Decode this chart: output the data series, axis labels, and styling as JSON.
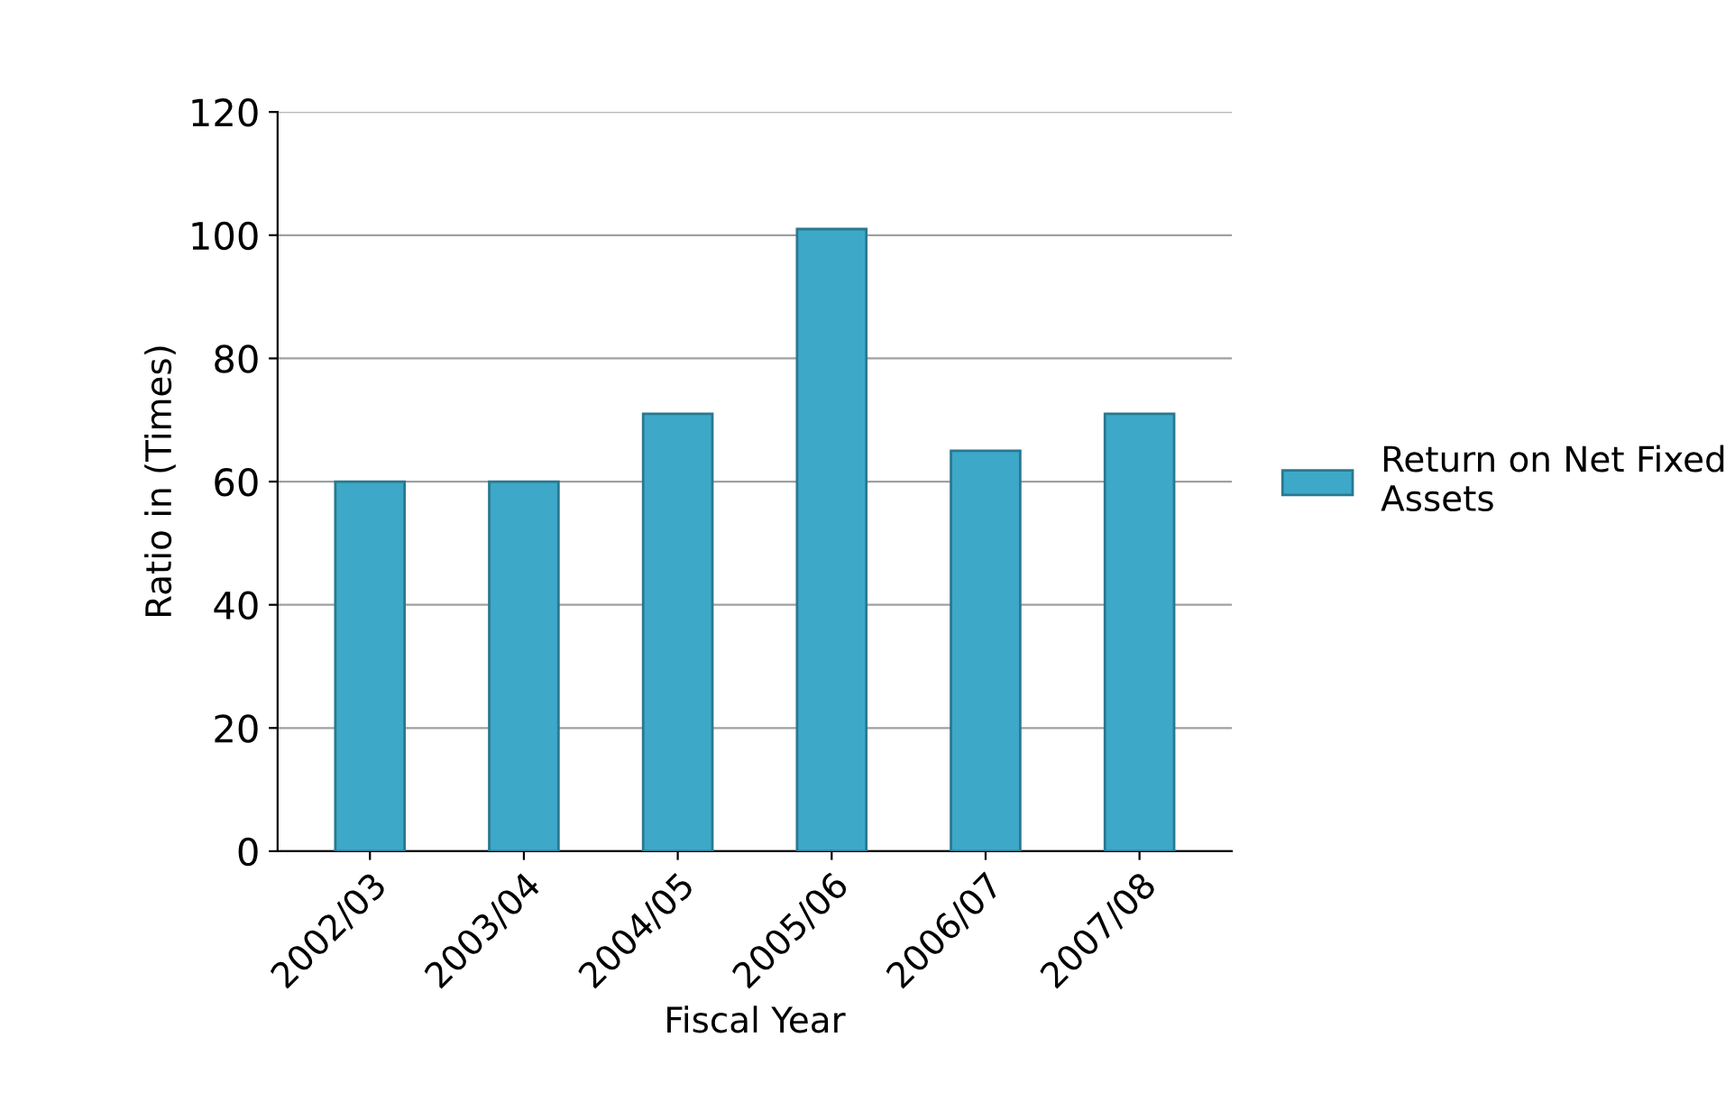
{
  "chart_data": {
    "type": "bar",
    "xlabel": "Fiscal Year",
    "ylabel": "Ratio in (Times)",
    "categories": [
      "2002/03",
      "2003/04",
      "2004/05",
      "2005/06",
      "2006/07",
      "2007/08"
    ],
    "series": [
      {
        "name": "Return on Net Fixed Assets",
        "color": "#3ea8c8",
        "values": [
          60,
          60,
          71,
          101,
          65,
          71
        ]
      }
    ],
    "ylim": [
      0,
      120
    ],
    "yticks": [
      0,
      20,
      40,
      60,
      80,
      100,
      120
    ],
    "grid": "y",
    "legend": "right"
  }
}
